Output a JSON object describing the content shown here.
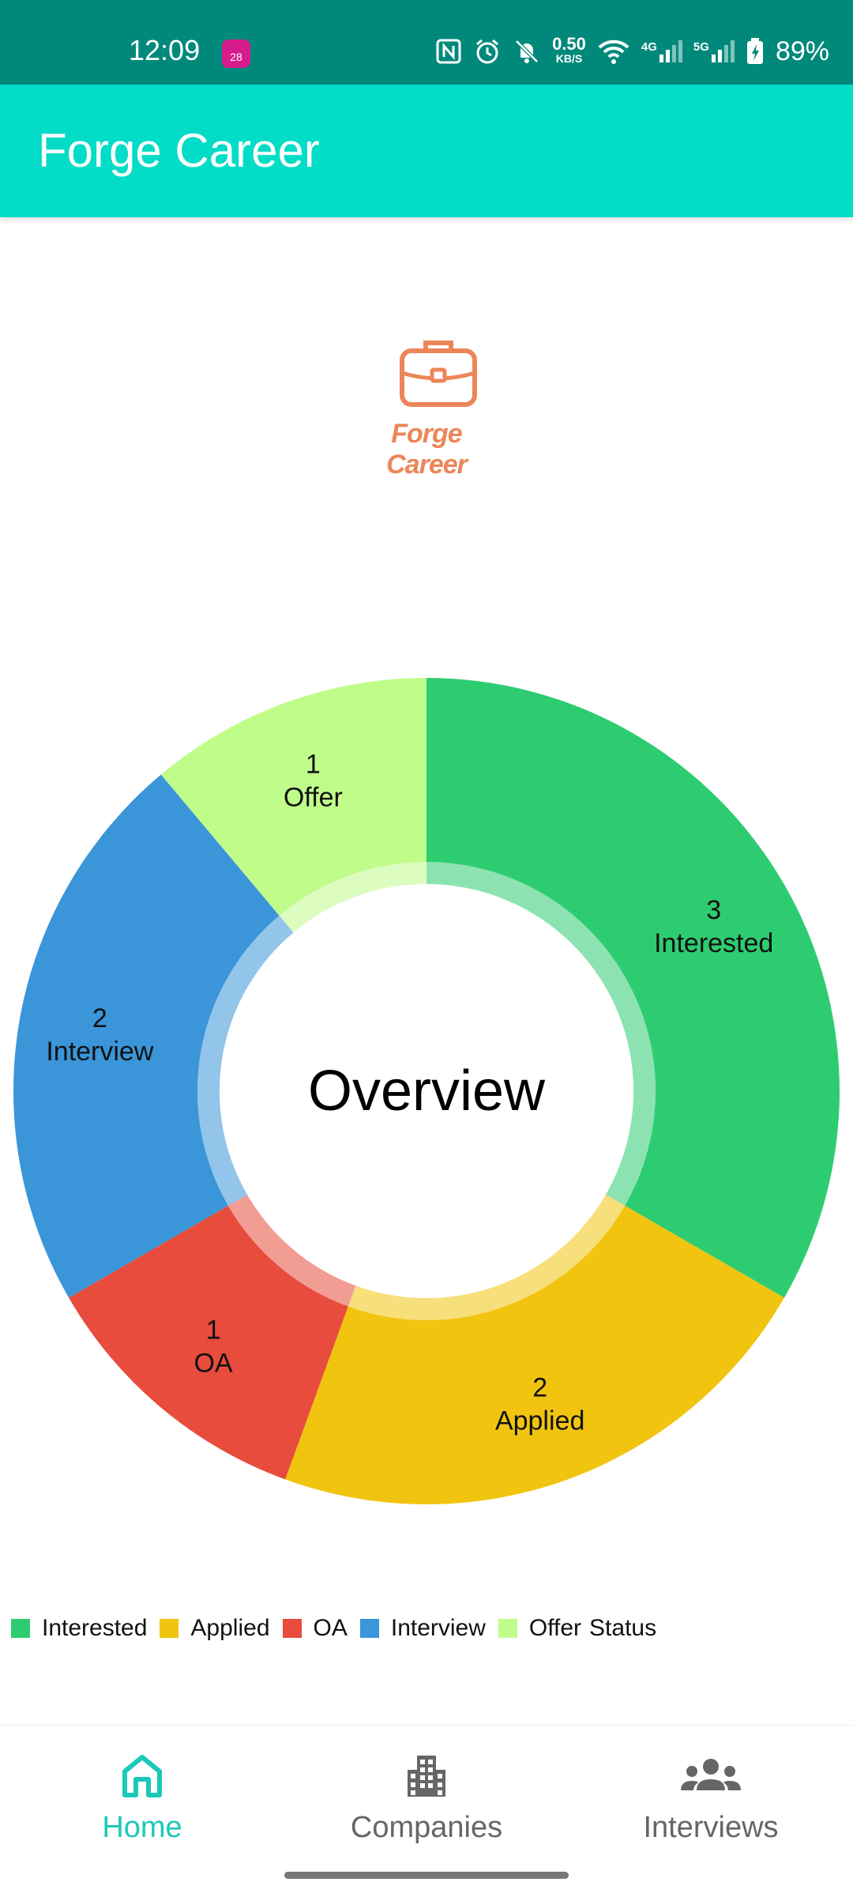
{
  "status_bar": {
    "time": "12:09",
    "calendar_day": "28",
    "net_speed_value": "0.50",
    "net_speed_unit": "KB/S",
    "signal_4g": "4G",
    "signal_5g": "5G",
    "battery": "89%"
  },
  "app_bar": {
    "title": "Forge Career"
  },
  "logo": {
    "text": "Forge Career"
  },
  "chart_data": {
    "type": "pie",
    "title": "Overview",
    "legend_title": "Status",
    "legend_position": "bottom-left",
    "categories": [
      "Interested",
      "Applied",
      "OA",
      "Interview",
      "Offer"
    ],
    "values": [
      3,
      2,
      1,
      2,
      1
    ],
    "colors": [
      "#2ecc71",
      "#f1c40f",
      "#e74c3c",
      "#3a95d9",
      "#c0fc8a"
    ]
  },
  "bottom_nav": {
    "items": [
      {
        "label": "Home",
        "icon": "home-icon",
        "active": true
      },
      {
        "label": "Companies",
        "icon": "building-icon",
        "active": false
      },
      {
        "label": "Interviews",
        "icon": "group-icon",
        "active": false
      }
    ],
    "active_color": "#1cc8b8",
    "inactive_color": "#666666"
  }
}
